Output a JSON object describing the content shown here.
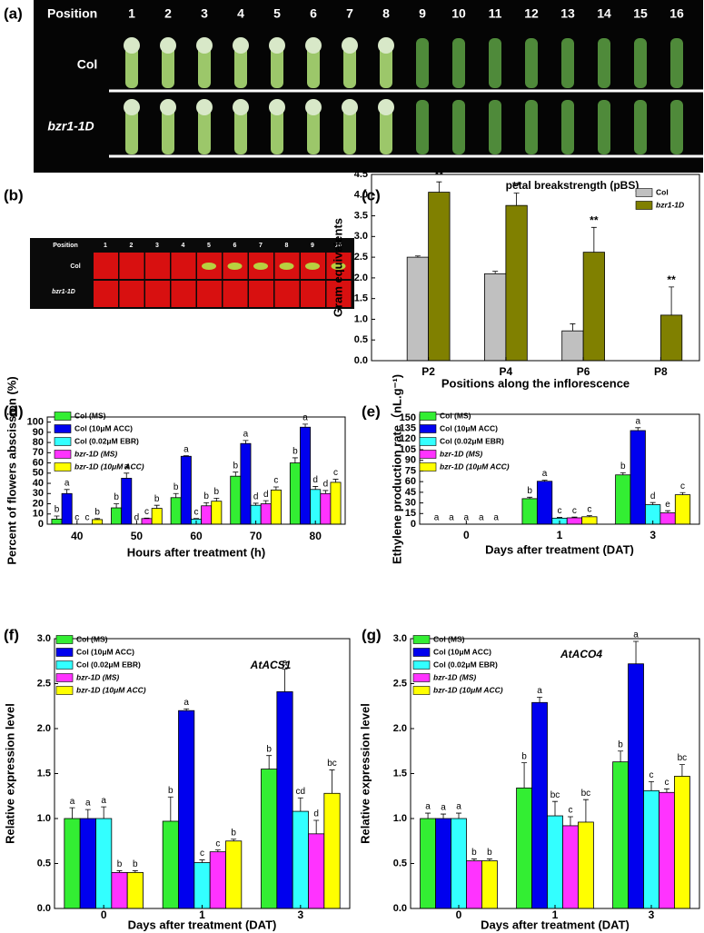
{
  "photo_panels": [
    {
      "panel_label": "(a)",
      "header": "Position",
      "positions": [
        "1",
        "2",
        "3",
        "4",
        "5",
        "6",
        "7",
        "8",
        "9",
        "10",
        "11",
        "12",
        "13",
        "14",
        "15",
        "16"
      ],
      "rows": [
        "Col",
        "bzr1-1D"
      ]
    },
    {
      "panel_label": "(b)",
      "header": "Position",
      "positions": [
        "1",
        "2",
        "3",
        "4",
        "5",
        "6",
        "7",
        "8",
        "9",
        "10"
      ],
      "rows": [
        "Col",
        "bzr1-1D"
      ]
    }
  ],
  "chart_data": [
    {
      "type": "bar",
      "panel_label": "(c)",
      "title": "petal breakstrength (pBS)",
      "y_label": "Gram equivalents",
      "x_label": "Positions along the inflorescence",
      "categories": [
        "P2",
        "P4",
        "P6",
        "P8"
      ],
      "series": [
        {
          "name": "Col",
          "color": "#c0c0c0",
          "values": [
            2.5,
            2.1,
            0.72,
            0
          ],
          "errors": [
            0.03,
            0.06,
            0.17,
            null
          ]
        },
        {
          "name": "bzr1-1D",
          "color": "#808000",
          "values": [
            4.07,
            3.75,
            2.62,
            1.1
          ],
          "errors": [
            0.25,
            0.3,
            0.6,
            0.68
          ],
          "letters": [
            "**",
            "**",
            "**",
            "**"
          ]
        }
      ],
      "ylim": [
        0,
        4.5
      ],
      "yticks": [
        {
          "value": 0,
          "label": "0.0"
        },
        {
          "value": 0.5,
          "label": "0.5"
        },
        {
          "value": 1,
          "label": "1.0"
        },
        {
          "value": 1.5,
          "label": "1.5"
        },
        {
          "value": 2,
          "label": "2.0"
        },
        {
          "value": 2.5,
          "label": "2.5"
        },
        {
          "value": 3,
          "label": "3.0"
        },
        {
          "value": 3.5,
          "label": "3.5"
        },
        {
          "value": 4,
          "label": "4.0"
        },
        {
          "value": 4.5,
          "label": "4.5"
        }
      ],
      "legend": "top-right"
    },
    {
      "type": "bar",
      "panel_label": "(d)",
      "y_label": "Percent of flowers abscission (%)",
      "x_label": "Hours after treatment (h)",
      "categories": [
        "40",
        "50",
        "60",
        "70",
        "80"
      ],
      "series": [
        {
          "name": "Col (MS)",
          "color": "#33ee33",
          "values": [
            5,
            16,
            26,
            47,
            60
          ],
          "errors": [
            3,
            4,
            4,
            4,
            5
          ],
          "letters": [
            "b",
            "b",
            "b",
            "b",
            "b"
          ]
        },
        {
          "name": "Col (10μM ACC)",
          "color": "#0000ee",
          "values": [
            30,
            45,
            66.5,
            79,
            95
          ],
          "errors": [
            4,
            5,
            0.5,
            3,
            3
          ],
          "letters": [
            "a",
            "a",
            "a",
            "a",
            "a"
          ]
        },
        {
          "name": "Col (0.02μM EBR)",
          "color": "#33ffff",
          "values": [
            0,
            0,
            5,
            18.5,
            34
          ],
          "errors": [
            0,
            0,
            0.5,
            2,
            3
          ],
          "letters": [
            "c",
            "d",
            "c",
            "d",
            "d"
          ]
        },
        {
          "name": "bzr-1D (MS)",
          "color": "#ff33ff",
          "values": [
            0,
            5.5,
            18,
            20,
            30
          ],
          "errors": [
            0,
            0.5,
            3,
            3,
            3
          ],
          "letters": [
            "c",
            "c",
            "b",
            "d",
            "d"
          ]
        },
        {
          "name": "bzr-1D (10μM ACC)",
          "color": "#ffff00",
          "values": [
            4.5,
            15.5,
            22.5,
            33.5,
            41
          ],
          "errors": [
            1,
            3,
            3,
            3,
            3
          ],
          "letters": [
            "b",
            "b",
            "b",
            "c",
            "c"
          ]
        }
      ],
      "ylim": [
        0,
        105
      ],
      "yticks": [
        0,
        10,
        20,
        30,
        40,
        50,
        60,
        70,
        80,
        90,
        100
      ],
      "legend": "top-left"
    },
    {
      "type": "bar",
      "panel_label": "(e)",
      "y_label": "Ethylene production rate（nL.g⁻¹)",
      "x_label": "Days after treatment (DAT)",
      "categories": [
        "0",
        "1",
        "3"
      ],
      "series": [
        {
          "name": "Col (MS)",
          "color": "#33ee33",
          "values": [
            0,
            36,
            69.5
          ],
          "errors": [
            0,
            2,
            3
          ],
          "letters": [
            "a",
            "b",
            "b"
          ]
        },
        {
          "name": "Col (10μM ACC)",
          "color": "#0000ee",
          "values": [
            0,
            60.5,
            132
          ],
          "errors": [
            0,
            1.5,
            4
          ],
          "letters": [
            "a",
            "a",
            "a"
          ]
        },
        {
          "name": "Col (0.02μM EBR)",
          "color": "#33ffff",
          "values": [
            0,
            8.5,
            27.5
          ],
          "errors": [
            0,
            1,
            3
          ],
          "letters": [
            "a",
            "c",
            "d"
          ]
        },
        {
          "name": "bzr-1D (MS)",
          "color": "#ff33ff",
          "values": [
            0,
            9,
            16
          ],
          "errors": [
            0,
            1,
            3
          ],
          "letters": [
            "a",
            "c",
            "e"
          ]
        },
        {
          "name": "bzr-1D (10μM ACC)",
          "color": "#ffff00",
          "values": [
            0,
            10.5,
            41.5
          ],
          "errors": [
            0,
            1.5,
            3
          ],
          "letters": [
            "a",
            "c",
            "c"
          ]
        }
      ],
      "ylim": [
        0,
        155
      ],
      "yticks": [
        0,
        15,
        30,
        45,
        60,
        75,
        90,
        105,
        120,
        135,
        150
      ],
      "legend": "top-left"
    },
    {
      "type": "bar",
      "panel_label": "(f)",
      "title": "AtACS1",
      "y_label": "Relative expression level",
      "x_label": "Days after treatment (DAT)",
      "categories": [
        "0",
        "1",
        "3"
      ],
      "series": [
        {
          "name": "Col (MS)",
          "color": "#33ee33",
          "values": [
            1.0,
            0.97,
            1.55
          ],
          "errors": [
            0.12,
            0.27,
            0.15
          ],
          "letters": [
            "a",
            "b",
            "b"
          ]
        },
        {
          "name": "Col (10μM ACC)",
          "color": "#0000ee",
          "values": [
            1.0,
            2.2,
            2.41
          ],
          "errors": [
            0.1,
            0.02,
            0.25
          ],
          "letters": [
            "a",
            "a",
            "a"
          ]
        },
        {
          "name": "Col (0.02μM EBR)",
          "color": "#33ffff",
          "values": [
            1.0,
            0.51,
            1.08
          ],
          "errors": [
            0.13,
            0.03,
            0.15
          ],
          "letters": [
            "a",
            "c",
            "cd"
          ]
        },
        {
          "name": "bzr-1D (MS)",
          "color": "#ff33ff",
          "values": [
            0.4,
            0.63,
            0.83
          ],
          "errors": [
            0.02,
            0.02,
            0.15
          ],
          "letters": [
            "b",
            "c",
            "d"
          ]
        },
        {
          "name": "bzr-1D (10μM ACC)",
          "color": "#ffff00",
          "values": [
            0.4,
            0.75,
            1.28
          ],
          "errors": [
            0.02,
            0.02,
            0.26
          ],
          "letters": [
            "b",
            "b",
            "bc"
          ]
        }
      ],
      "ylim": [
        0,
        3
      ],
      "yticks": [
        {
          "value": 0,
          "label": "0.0"
        },
        {
          "value": 0.5,
          "label": "0.5"
        },
        {
          "value": 1,
          "label": "1.0"
        },
        {
          "value": 1.5,
          "label": "1.5"
        },
        {
          "value": 2,
          "label": "2.0"
        },
        {
          "value": 2.5,
          "label": "2.5"
        },
        {
          "value": 3,
          "label": "3.0"
        }
      ],
      "legend": "top-left"
    },
    {
      "type": "bar",
      "panel_label": "(g)",
      "title": "AtACO4",
      "y_label": "Relative expression level",
      "x_label": "Days after treatment (DAT)",
      "categories": [
        "0",
        "1",
        "3"
      ],
      "series": [
        {
          "name": "Col (MS)",
          "color": "#33ee33",
          "values": [
            1.0,
            1.34,
            1.63
          ],
          "errors": [
            0.06,
            0.28,
            0.12
          ],
          "letters": [
            "a",
            "b",
            "b"
          ]
        },
        {
          "name": "Col (10μM ACC)",
          "color": "#0000ee",
          "values": [
            1.0,
            2.29,
            2.72
          ],
          "errors": [
            0.05,
            0.06,
            0.25
          ],
          "letters": [
            "a",
            "a",
            "a"
          ]
        },
        {
          "name": "Col (0.02μM EBR)",
          "color": "#33ffff",
          "values": [
            1.0,
            1.03,
            1.31
          ],
          "errors": [
            0.06,
            0.16,
            0.1
          ],
          "letters": [
            "a",
            "bc",
            "c"
          ]
        },
        {
          "name": "bzr-1D (MS)",
          "color": "#ff33ff",
          "values": [
            0.53,
            0.92,
            1.29
          ],
          "errors": [
            0.02,
            0.1,
            0.04
          ],
          "letters": [
            "b",
            "c",
            "c"
          ]
        },
        {
          "name": "bzr-1D (10μM ACC)",
          "color": "#ffff00",
          "values": [
            0.53,
            0.96,
            1.47
          ],
          "errors": [
            0.02,
            0.25,
            0.13
          ],
          "letters": [
            "b",
            "bc",
            "bc"
          ]
        }
      ],
      "ylim": [
        0,
        3
      ],
      "yticks": [
        {
          "value": 0,
          "label": "0.0"
        },
        {
          "value": 0.5,
          "label": "0.5"
        },
        {
          "value": 1,
          "label": "1.0"
        },
        {
          "value": 1.5,
          "label": "1.5"
        },
        {
          "value": 2,
          "label": "2.0"
        },
        {
          "value": 2.5,
          "label": "2.5"
        },
        {
          "value": 3,
          "label": "3.0"
        }
      ],
      "legend": "top-left"
    }
  ]
}
